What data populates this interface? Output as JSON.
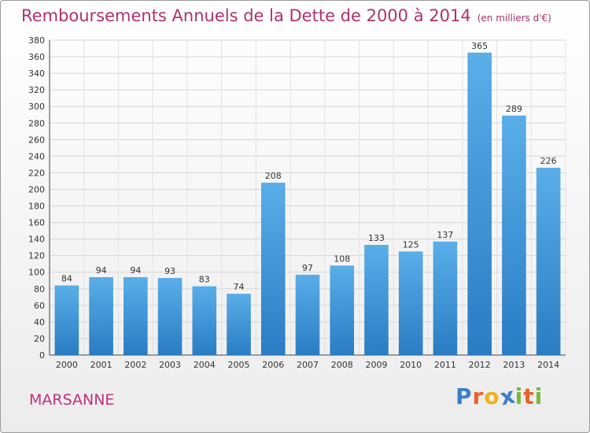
{
  "chart_data": {
    "type": "bar",
    "title": "Remboursements Annuels de la Dette de 2000 à 2014",
    "subtitle": "(en milliers d'€)",
    "categories": [
      "2000",
      "2001",
      "2002",
      "2003",
      "2004",
      "2005",
      "2006",
      "2007",
      "2008",
      "2009",
      "2010",
      "2011",
      "2012",
      "2013",
      "2014"
    ],
    "values": [
      84,
      94,
      94,
      93,
      83,
      74,
      208,
      97,
      108,
      133,
      125,
      137,
      365,
      289,
      226
    ],
    "ylim": [
      0,
      380
    ],
    "yticks": [
      0,
      20,
      40,
      60,
      80,
      100,
      120,
      140,
      160,
      180,
      200,
      220,
      240,
      260,
      280,
      300,
      320,
      340,
      360,
      380
    ],
    "grid": true,
    "bar_color": "#3a93d8",
    "title_color": "#b0306e"
  },
  "town": "MARSANNE",
  "brand": {
    "letters": [
      "P",
      "r",
      "o",
      "x",
      "i",
      "t",
      "i"
    ],
    "colors": [
      "#3a7fc8",
      "#e9622a",
      "#f0b020",
      "#3a7fc8",
      "#7ab83a",
      "#e9622a",
      "#7ab83a"
    ]
  }
}
